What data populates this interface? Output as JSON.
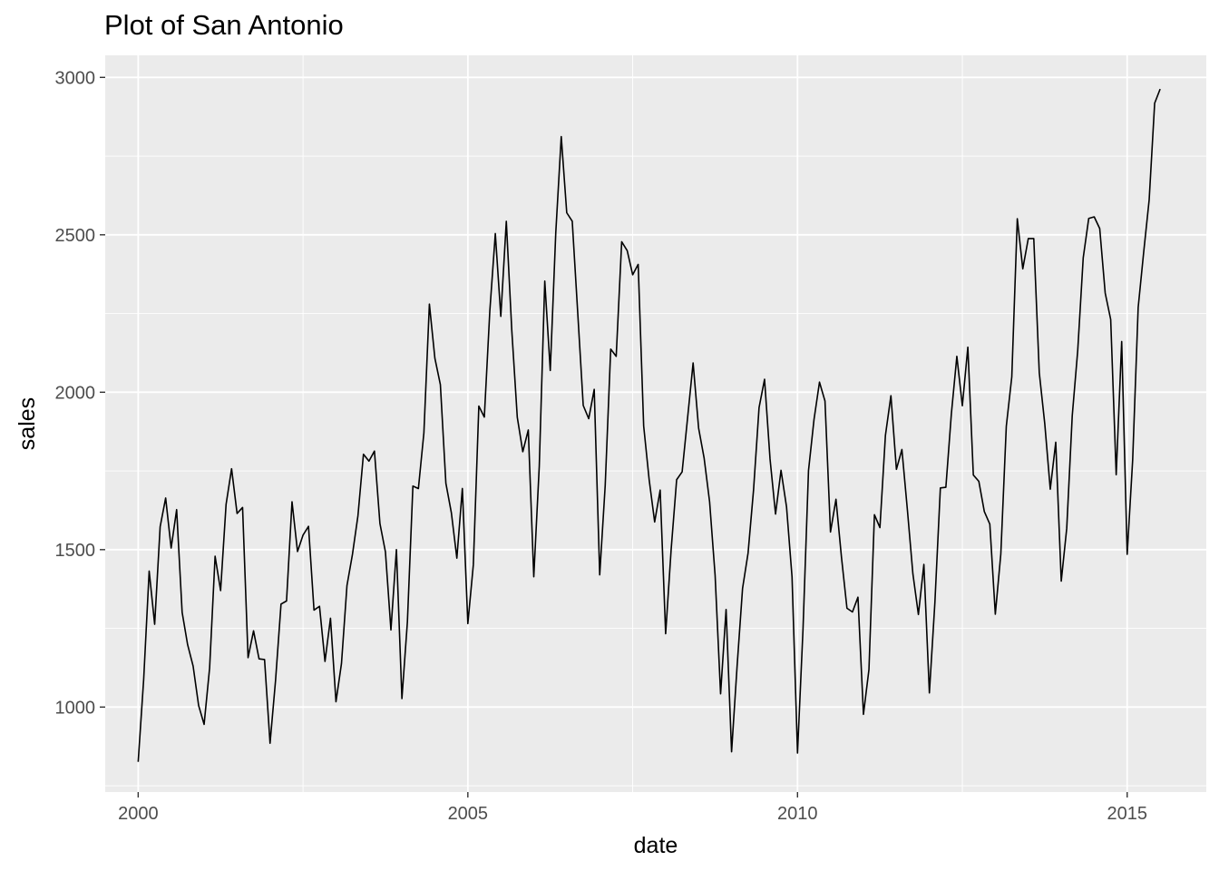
{
  "chart_data": {
    "type": "line",
    "title": "Plot of San Antonio",
    "xlabel": "date",
    "ylabel": "sales",
    "xlim": [
      1999.5,
      2016.2
    ],
    "ylim": [
      730,
      3070
    ],
    "x_ticks": [
      2000,
      2005,
      2010,
      2015
    ],
    "x_tick_labels": [
      "2000",
      "2005",
      "2010",
      "2015"
    ],
    "y_ticks": [
      1000,
      1500,
      2000,
      2500,
      3000
    ],
    "y_tick_labels": [
      "1000",
      "1500",
      "2000",
      "2500",
      "3000"
    ],
    "grid": true,
    "panel_color": "#ebebeb",
    "grid_color": "#ffffff",
    "line_color": "#000000",
    "series": [
      {
        "x_start": 2000.0,
        "x_step": 0.08333333,
        "values": [
          826,
          1088,
          1432,
          1263,
          1573,
          1664,
          1505,
          1627,
          1301,
          1198,
          1130,
          1005,
          945,
          1124,
          1479,
          1370,
          1644,
          1757,
          1615,
          1634,
          1157,
          1242,
          1153,
          1151,
          885,
          1084,
          1327,
          1337,
          1652,
          1494,
          1546,
          1574,
          1308,
          1320,
          1145,
          1282,
          1017,
          1138,
          1386,
          1485,
          1608,
          1803,
          1781,
          1813,
          1583,
          1493,
          1245,
          1500,
          1027,
          1271,
          1702,
          1694,
          1871,
          2280,
          2108,
          2024,
          1711,
          1617,
          1473,
          1694,
          1265,
          1452,
          1956,
          1921,
          2258,
          2504,
          2241,
          2543,
          2196,
          1920,
          1811,
          1880,
          1414,
          1765,
          2353,
          2069,
          2506,
          2812,
          2570,
          2543,
          2252,
          1958,
          1916,
          2009,
          1420,
          1704,
          2137,
          2114,
          2478,
          2450,
          2373,
          2406,
          1893,
          1722,
          1588,
          1689,
          1233,
          1500,
          1722,
          1747,
          1920,
          2093,
          1886,
          1791,
          1652,
          1419,
          1042,
          1310,
          858,
          1129,
          1377,
          1489,
          1690,
          1951,
          2041,
          1788,
          1613,
          1752,
          1636,
          1414,
          854,
          1247,
          1751,
          1913,
          2032,
          1972,
          1556,
          1660,
          1476,
          1314,
          1302,
          1349,
          977,
          1119,
          1611,
          1570,
          1863,
          1989,
          1755,
          1818,
          1626,
          1423,
          1294,
          1453,
          1045,
          1331,
          1696,
          1698,
          1931,
          2114,
          1957,
          2143,
          1737,
          1717,
          1621,
          1581,
          1295,
          1486,
          1892,
          2049,
          2551,
          2392,
          2488,
          2488,
          2062,
          1900,
          1692,
          1841,
          1400,
          1568,
          1925,
          2133,
          2427,
          2552,
          2557,
          2520,
          2315,
          2231,
          1738,
          2161,
          1485,
          1785,
          2269,
          2444,
          2611,
          2918,
          2963
        ]
      }
    ]
  }
}
